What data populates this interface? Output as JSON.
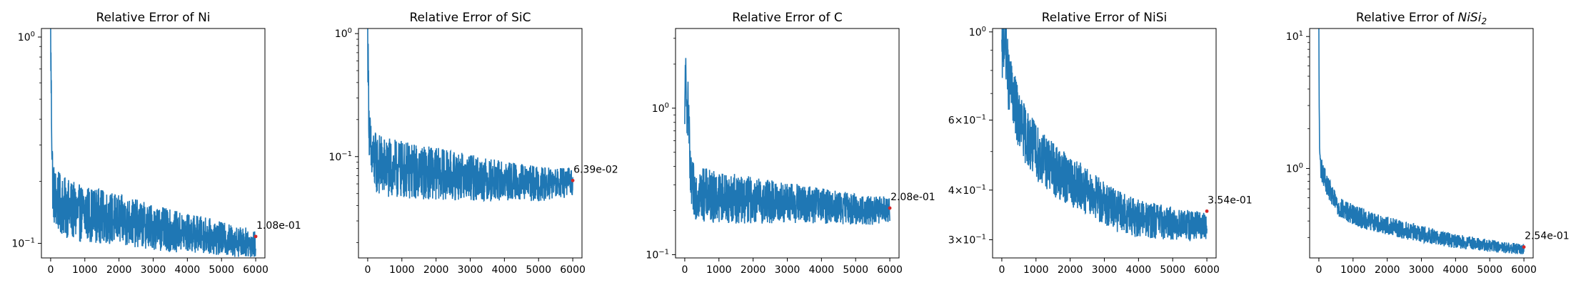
{
  "chart_data": [
    {
      "type": "line",
      "title": "Relative Error of Ni",
      "title_sub": "",
      "xlim": [
        0,
        6000
      ],
      "x_ticks": [
        0,
        1000,
        2000,
        3000,
        4000,
        5000,
        6000
      ],
      "x_tick_labels": [
        "0",
        "1000",
        "2000",
        "3000",
        "4000",
        "5000",
        "6000"
      ],
      "yscale": "log",
      "ylim": [
        0.085,
        1.1
      ],
      "y_ticks": [
        1,
        0.1
      ],
      "y_tick_labels": [
        {
          "base": "10",
          "exp": "0"
        },
        {
          "base": "10",
          "exp": "−1"
        }
      ],
      "y_minor_ticks": [
        0.2,
        0.3,
        0.4,
        0.5,
        0.6,
        0.7,
        0.8,
        0.9
      ],
      "line_color": "#1f77b4",
      "series": {
        "x": [
          0,
          20,
          40,
          60,
          100,
          150,
          200,
          300,
          400,
          600,
          800,
          1000,
          1500,
          2000,
          2500,
          3000,
          3500,
          4000,
          4500,
          5000,
          5500,
          6000
        ],
        "y": [
          1.0,
          0.5,
          0.3,
          0.2,
          0.17,
          0.165,
          0.16,
          0.155,
          0.15,
          0.145,
          0.14,
          0.14,
          0.135,
          0.13,
          0.125,
          0.12,
          0.115,
          0.112,
          0.11,
          0.105,
          0.102,
          0.1
        ],
        "noise": 0.35
      },
      "final_point": {
        "x": 6000,
        "y": 0.108,
        "color": "#d62728"
      },
      "annotation": "1.08e-01"
    },
    {
      "type": "line",
      "title": "Relative Error of SiC",
      "title_sub": "",
      "xlim": [
        0,
        6000
      ],
      "x_ticks": [
        0,
        1000,
        2000,
        3000,
        4000,
        5000,
        6000
      ],
      "x_tick_labels": [
        "0",
        "1000",
        "2000",
        "3000",
        "4000",
        "5000",
        "6000"
      ],
      "yscale": "log",
      "ylim": [
        0.015,
        1.1
      ],
      "y_ticks": [
        1,
        0.1
      ],
      "y_tick_labels": [
        {
          "base": "10",
          "exp": "0"
        },
        {
          "base": "10",
          "exp": "−1"
        }
      ],
      "y_minor_ticks": [
        0.02,
        0.03,
        0.04,
        0.05,
        0.06,
        0.07,
        0.08,
        0.09,
        0.2,
        0.3,
        0.4,
        0.5,
        0.6,
        0.7,
        0.8,
        0.9
      ],
      "line_color": "#1f77b4",
      "series": {
        "x": [
          0,
          20,
          50,
          100,
          200,
          400,
          600,
          1000,
          1500,
          2000,
          2500,
          3000,
          3500,
          4000,
          4500,
          5000,
          5500,
          6000
        ],
        "y": [
          0.9,
          0.4,
          0.15,
          0.1,
          0.09,
          0.085,
          0.08,
          0.078,
          0.075,
          0.073,
          0.07,
          0.068,
          0.065,
          0.063,
          0.062,
          0.06,
          0.06,
          0.062
        ],
        "noise": 0.6
      },
      "final_point": {
        "x": 6000,
        "y": 0.0639,
        "color": "#d62728"
      },
      "annotation": "6.39e-02"
    },
    {
      "type": "line",
      "title": "Relative Error of C",
      "title_sub": "",
      "xlim": [
        0,
        6000
      ],
      "x_ticks": [
        0,
        1000,
        2000,
        3000,
        4000,
        5000,
        6000
      ],
      "x_tick_labels": [
        "0",
        "1000",
        "2000",
        "3000",
        "4000",
        "5000",
        "6000"
      ],
      "yscale": "log",
      "ylim": [
        0.095,
        3.5
      ],
      "y_ticks": [
        1,
        0.1
      ],
      "y_tick_labels": [
        {
          "base": "10",
          "exp": "0"
        },
        {
          "base": "10",
          "exp": "−1"
        }
      ],
      "y_minor_ticks": [
        0.2,
        0.3,
        0.4,
        0.5,
        0.6,
        0.7,
        0.8,
        0.9,
        2,
        3
      ],
      "line_color": "#1f77b4",
      "series": {
        "x": [
          0,
          20,
          40,
          60,
          100,
          120,
          150,
          200,
          300,
          500,
          800,
          1000,
          1500,
          2000,
          2500,
          3000,
          3500,
          4000,
          4500,
          5000,
          5500,
          6000
        ],
        "y": [
          0.6,
          2.8,
          0.9,
          1.0,
          1.0,
          0.9,
          0.35,
          0.28,
          0.27,
          0.26,
          0.25,
          0.25,
          0.24,
          0.235,
          0.23,
          0.225,
          0.22,
          0.215,
          0.21,
          0.205,
          0.2,
          0.205
        ],
        "noise": 0.45
      },
      "final_point": {
        "x": 6000,
        "y": 0.208,
        "color": "#d62728"
      },
      "annotation": "2.08e-01"
    },
    {
      "type": "line",
      "title": "Relative Error of NiSi",
      "title_sub": "",
      "xlim": [
        0,
        6000
      ],
      "x_ticks": [
        0,
        1000,
        2000,
        3000,
        4000,
        5000,
        6000
      ],
      "x_tick_labels": [
        "0",
        "1000",
        "2000",
        "3000",
        "4000",
        "5000",
        "6000"
      ],
      "yscale": "log",
      "ylim": [
        0.27,
        1.02
      ],
      "y_ticks": [
        1,
        0.6,
        0.4,
        0.3
      ],
      "y_tick_labels": [
        {
          "base": "10",
          "exp": "0"
        },
        {
          "base": "6×10",
          "exp": "−1"
        },
        {
          "base": "4×10",
          "exp": "−1"
        },
        {
          "base": "3×10",
          "exp": "−1"
        }
      ],
      "y_minor_ticks": [
        0.5,
        0.7,
        0.8,
        0.9
      ],
      "line_color": "#1f77b4",
      "series": {
        "x": [
          0,
          50,
          100,
          150,
          200,
          300,
          500,
          700,
          1000,
          1500,
          2000,
          2500,
          3000,
          3500,
          4000,
          4500,
          5000,
          5500,
          6000
        ],
        "y": [
          0.85,
          0.95,
          0.95,
          0.85,
          0.75,
          0.7,
          0.6,
          0.55,
          0.5,
          0.45,
          0.42,
          0.4,
          0.37,
          0.35,
          0.34,
          0.335,
          0.33,
          0.325,
          0.325
        ],
        "noise": 0.18
      },
      "final_point": {
        "x": 6000,
        "y": 0.354,
        "color": "#d62728"
      },
      "annotation": "3.54e-01"
    },
    {
      "type": "line",
      "title": "Relative Error of ",
      "title_sub": "2",
      "title_math": "NiSi",
      "xlim": [
        0,
        6000
      ],
      "x_ticks": [
        0,
        1000,
        2000,
        3000,
        4000,
        5000,
        6000
      ],
      "x_tick_labels": [
        "0",
        "1000",
        "2000",
        "3000",
        "4000",
        "5000",
        "6000"
      ],
      "yscale": "log",
      "ylim": [
        0.21,
        11.5
      ],
      "y_ticks": [
        10,
        1
      ],
      "y_tick_labels": [
        {
          "base": "10",
          "exp": "1"
        },
        {
          "base": "10",
          "exp": "0"
        }
      ],
      "y_minor_ticks": [
        0.3,
        0.4,
        0.5,
        0.6,
        0.7,
        0.8,
        0.9,
        2,
        3,
        4,
        5,
        6,
        7,
        8,
        9
      ],
      "line_color": "#1f77b4",
      "series": {
        "x": [
          0,
          10,
          20,
          40,
          60,
          100,
          200,
          400,
          600,
          1000,
          1500,
          2000,
          2500,
          3000,
          3500,
          4000,
          4500,
          5000,
          5500,
          6000
        ],
        "y": [
          10,
          3,
          1.5,
          1.1,
          1.0,
          0.95,
          0.8,
          0.6,
          0.5,
          0.45,
          0.4,
          0.37,
          0.34,
          0.32,
          0.3,
          0.28,
          0.27,
          0.26,
          0.25,
          0.245
        ],
        "noise": 0.2
      },
      "final_point": {
        "x": 6000,
        "y": 0.254,
        "color": "#d62728"
      },
      "annotation": "2.54e-01"
    }
  ]
}
